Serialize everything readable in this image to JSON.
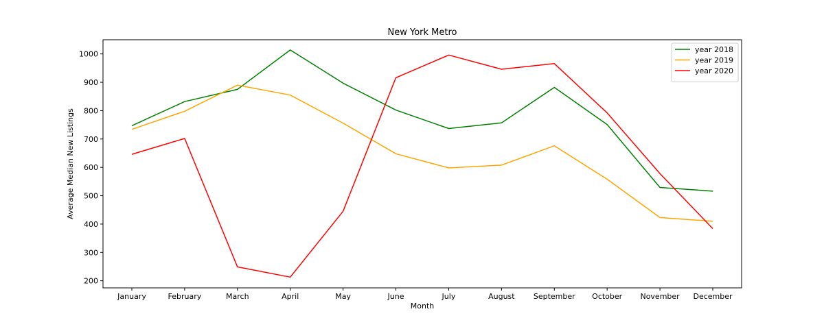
{
  "chart_data": {
    "type": "line",
    "title": "New York Metro",
    "xlabel": "Month",
    "ylabel": "Average Median New Listings",
    "categories": [
      "January",
      "February",
      "March",
      "April",
      "May",
      "June",
      "July",
      "August",
      "September",
      "October",
      "November",
      "December"
    ],
    "yticks": [
      200,
      300,
      400,
      500,
      600,
      700,
      800,
      900,
      1000
    ],
    "ylim": [
      175,
      1050
    ],
    "grid": false,
    "legend_position": "top-right",
    "series": [
      {
        "name": "year 2018",
        "color": "#008000",
        "values": [
          747,
          832,
          875,
          1014,
          897,
          802,
          737,
          757,
          882,
          751,
          529,
          516
        ]
      },
      {
        "name": "year 2019",
        "color": "#ffa500",
        "values": [
          734,
          798,
          890,
          855,
          756,
          648,
          598,
          608,
          676,
          558,
          423,
          410
        ]
      },
      {
        "name": "year 2020",
        "color": "#ff0000",
        "values": [
          646,
          702,
          249,
          213,
          445,
          916,
          996,
          946,
          966,
          792,
          578,
          384
        ]
      }
    ]
  }
}
